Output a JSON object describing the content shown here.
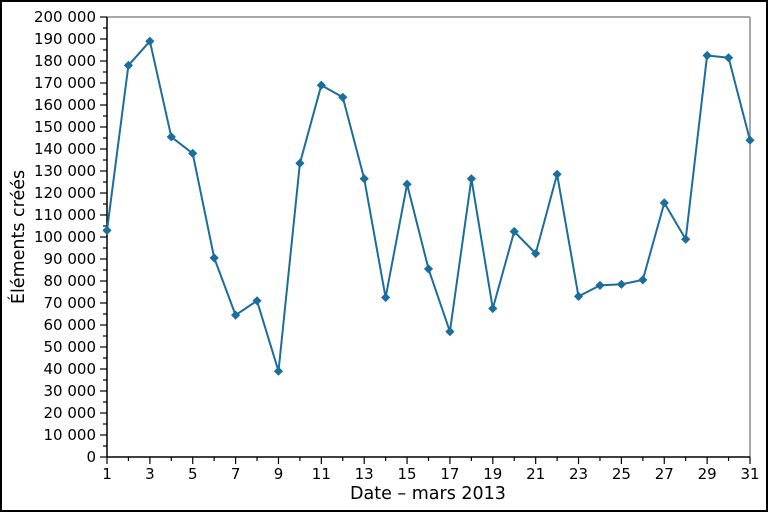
{
  "chart_data": {
    "type": "line",
    "title": "",
    "xlabel": "Date – mars 2013",
    "ylabel": "Éléments créés",
    "x": [
      1,
      2,
      3,
      4,
      5,
      6,
      7,
      8,
      9,
      10,
      11,
      12,
      13,
      14,
      15,
      16,
      17,
      18,
      19,
      20,
      21,
      22,
      23,
      24,
      25,
      26,
      27,
      28,
      29,
      30,
      31
    ],
    "series": [
      {
        "name": "Éléments créés",
        "values": [
          103000,
          178000,
          189000,
          145500,
          138000,
          90500,
          64500,
          71000,
          39000,
          133500,
          169000,
          163500,
          126500,
          72500,
          124000,
          85500,
          57000,
          126500,
          67500,
          102500,
          92500,
          128500,
          73000,
          78000,
          78500,
          80500,
          115500,
          99000,
          182500,
          181500,
          144000
        ]
      }
    ],
    "xlim": [
      1,
      31
    ],
    "ylim": [
      0,
      200000
    ],
    "ytick_step": 10000,
    "ytick_minor_step": 5000,
    "xtick_major_days": "odd",
    "ytick_labels": [
      "0",
      "10 000",
      "20 000",
      "30 000",
      "40 000",
      "50 000",
      "60 000",
      "70 000",
      "80 000",
      "90 000",
      "100 000",
      "110 000",
      "120 000",
      "130 000",
      "140 000",
      "150 000",
      "160 000",
      "170 000",
      "180 000",
      "190 000",
      "200 000"
    ],
    "xtick_labels": [
      "1",
      "3",
      "5",
      "7",
      "9",
      "11",
      "13",
      "15",
      "17",
      "19",
      "21",
      "23",
      "25",
      "27",
      "29",
      "31"
    ],
    "grid": false,
    "legend": false,
    "marker": "diamond",
    "line_color": "#1b6d9c",
    "axis_color": "#000000",
    "frame_color": "#8c8c8c",
    "background_color": "#ffffff"
  }
}
